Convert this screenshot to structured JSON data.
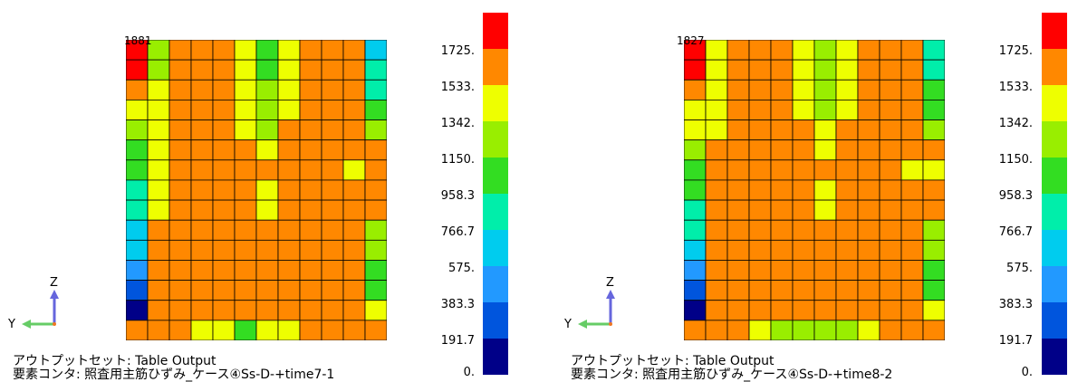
{
  "colorbar": {
    "labels": [
      "1725.",
      "1533.",
      "1342.",
      "1150.",
      "958.3",
      "766.7",
      "575.",
      "383.3",
      "191.7",
      "0."
    ],
    "colors": [
      "#ff0000",
      "#ff8800",
      "#eeff00",
      "#99ee00",
      "#33dd22",
      "#00eeaa",
      "#00ccee",
      "#2299ff",
      "#0055dd",
      "#000088"
    ]
  },
  "panels": [
    {
      "max_label": "1881",
      "caption_line1": "アウトプットセット: Table Output",
      "caption_line2": "要素コンタ: 照査用主筋ひずみ_ケース④Ss-D-+time7-1",
      "axis_z": "Z",
      "axis_y": "Y",
      "grid": [
        [
          0,
          3,
          1,
          1,
          1,
          2,
          4,
          2,
          1,
          1,
          1,
          6
        ],
        [
          0,
          3,
          1,
          1,
          1,
          2,
          4,
          2,
          1,
          1,
          1,
          5
        ],
        [
          1,
          2,
          1,
          1,
          1,
          2,
          3,
          2,
          1,
          1,
          1,
          5
        ],
        [
          2,
          2,
          1,
          1,
          1,
          2,
          3,
          2,
          1,
          1,
          1,
          4
        ],
        [
          3,
          2,
          1,
          1,
          1,
          2,
          3,
          1,
          1,
          1,
          1,
          3
        ],
        [
          4,
          2,
          1,
          1,
          1,
          1,
          2,
          1,
          1,
          1,
          1,
          1
        ],
        [
          4,
          2,
          1,
          1,
          1,
          1,
          1,
          1,
          1,
          1,
          2,
          1
        ],
        [
          5,
          2,
          1,
          1,
          1,
          1,
          2,
          1,
          1,
          1,
          1,
          1
        ],
        [
          5,
          2,
          1,
          1,
          1,
          1,
          2,
          1,
          1,
          1,
          1,
          1
        ],
        [
          6,
          1,
          1,
          1,
          1,
          1,
          1,
          1,
          1,
          1,
          1,
          3
        ],
        [
          6,
          1,
          1,
          1,
          1,
          1,
          1,
          1,
          1,
          1,
          1,
          3
        ],
        [
          7,
          1,
          1,
          1,
          1,
          1,
          1,
          1,
          1,
          1,
          1,
          4
        ],
        [
          8,
          1,
          1,
          1,
          1,
          1,
          1,
          1,
          1,
          1,
          1,
          4
        ],
        [
          9,
          1,
          1,
          1,
          1,
          1,
          1,
          1,
          1,
          1,
          1,
          2
        ],
        [
          1,
          1,
          1,
          2,
          2,
          4,
          2,
          2,
          1,
          1,
          1,
          1
        ]
      ]
    },
    {
      "max_label": "1827",
      "caption_line1": "アウトプットセット: Table Output",
      "caption_line2": "要素コンタ: 照査用主筋ひずみ_ケース④Ss-D-+time8-2",
      "axis_z": "Z",
      "axis_y": "Y",
      "grid": [
        [
          0,
          2,
          1,
          1,
          1,
          2,
          3,
          2,
          1,
          1,
          1,
          5
        ],
        [
          0,
          2,
          1,
          1,
          1,
          2,
          3,
          2,
          1,
          1,
          1,
          5
        ],
        [
          1,
          2,
          1,
          1,
          1,
          2,
          3,
          2,
          1,
          1,
          1,
          4
        ],
        [
          2,
          2,
          1,
          1,
          1,
          2,
          3,
          2,
          1,
          1,
          1,
          4
        ],
        [
          2,
          2,
          1,
          1,
          1,
          1,
          2,
          1,
          1,
          1,
          1,
          3
        ],
        [
          3,
          1,
          1,
          1,
          1,
          1,
          2,
          1,
          1,
          1,
          1,
          1
        ],
        [
          4,
          1,
          1,
          1,
          1,
          1,
          1,
          1,
          1,
          1,
          2,
          2
        ],
        [
          4,
          1,
          1,
          1,
          1,
          1,
          2,
          1,
          1,
          1,
          1,
          1
        ],
        [
          5,
          1,
          1,
          1,
          1,
          1,
          2,
          1,
          1,
          1,
          1,
          1
        ],
        [
          5,
          1,
          1,
          1,
          1,
          1,
          1,
          1,
          1,
          1,
          1,
          3
        ],
        [
          6,
          1,
          1,
          1,
          1,
          1,
          1,
          1,
          1,
          1,
          1,
          3
        ],
        [
          7,
          1,
          1,
          1,
          1,
          1,
          1,
          1,
          1,
          1,
          1,
          4
        ],
        [
          8,
          1,
          1,
          1,
          1,
          1,
          1,
          1,
          1,
          1,
          1,
          4
        ],
        [
          9,
          1,
          1,
          1,
          1,
          1,
          1,
          1,
          1,
          1,
          1,
          2
        ],
        [
          1,
          1,
          1,
          2,
          3,
          3,
          3,
          3,
          2,
          1,
          1,
          1
        ]
      ]
    }
  ]
}
